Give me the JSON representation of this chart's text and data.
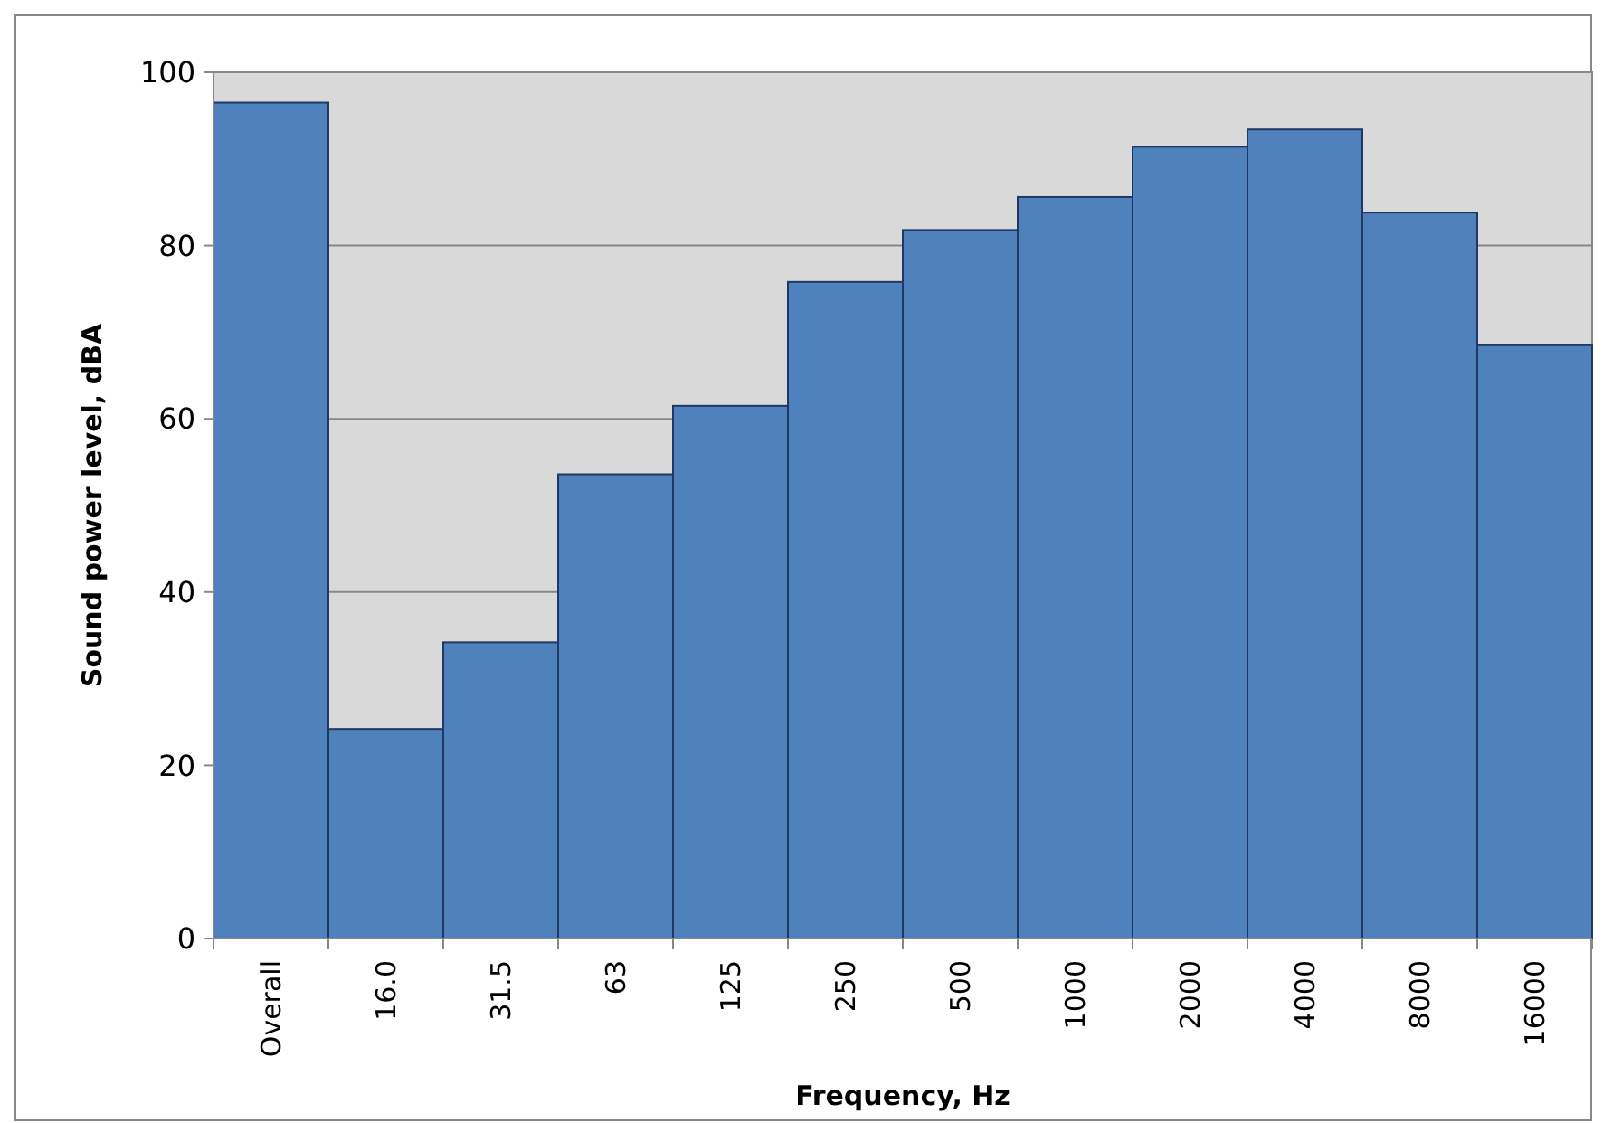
{
  "chart_data": {
    "type": "bar",
    "xlabel": "Frequency, Hz",
    "ylabel": "Sound power level, dBA",
    "categories": [
      "Overall",
      "16.0",
      "31.5",
      "63",
      "125",
      "250",
      "500",
      "1000",
      "2000",
      "4000",
      "8000",
      "16000"
    ],
    "values": [
      96.5,
      24.2,
      34.2,
      53.6,
      61.5,
      75.8,
      81.8,
      85.6,
      91.4,
      93.4,
      83.8,
      68.5
    ],
    "color": "#4f81bd",
    "ylim": [
      0,
      100
    ],
    "yticks": [
      0,
      20,
      40,
      60,
      80,
      100
    ],
    "grid": "y"
  }
}
